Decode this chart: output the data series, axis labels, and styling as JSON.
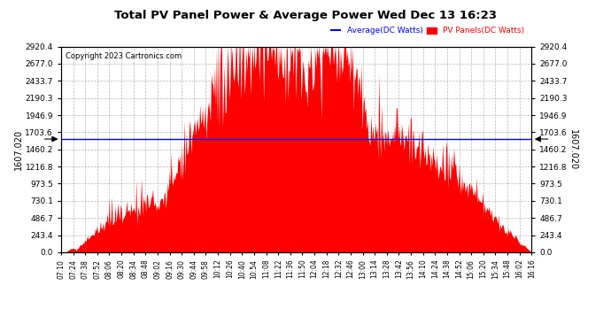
{
  "title": "Total PV Panel Power & Average Power Wed Dec 13 16:23",
  "copyright": "Copyright 2023 Cartronics.com",
  "legend_average": "Average(DC Watts)",
  "legend_pv": "PV Panels(DC Watts)",
  "average_value": 1607.02,
  "y_ticks": [
    0.0,
    243.4,
    486.7,
    730.1,
    973.5,
    1216.8,
    1460.2,
    1703.6,
    1946.9,
    2190.3,
    2433.7,
    2677.0,
    2920.4
  ],
  "y_max": 2920.4,
  "y_min": 0.0,
  "fill_color": "#ff0000",
  "avg_line_color": "#0000ff",
  "background_color": "#ffffff",
  "grid_color": "#888888",
  "legend_avg_color": "#0000ff",
  "legend_pv_color": "#ff0000",
  "x_ticks": [
    "07:10",
    "07:24",
    "07:38",
    "07:52",
    "08:06",
    "08:20",
    "08:34",
    "08:48",
    "09:02",
    "09:16",
    "09:30",
    "09:44",
    "09:58",
    "10:12",
    "10:26",
    "10:40",
    "10:54",
    "11:08",
    "11:22",
    "11:36",
    "11:50",
    "12:04",
    "12:18",
    "12:32",
    "12:46",
    "13:00",
    "13:14",
    "13:28",
    "13:42",
    "13:56",
    "14:10",
    "14:24",
    "14:38",
    "14:52",
    "15:06",
    "15:20",
    "15:34",
    "15:48",
    "16:02",
    "16:16"
  ],
  "n_points": 540
}
